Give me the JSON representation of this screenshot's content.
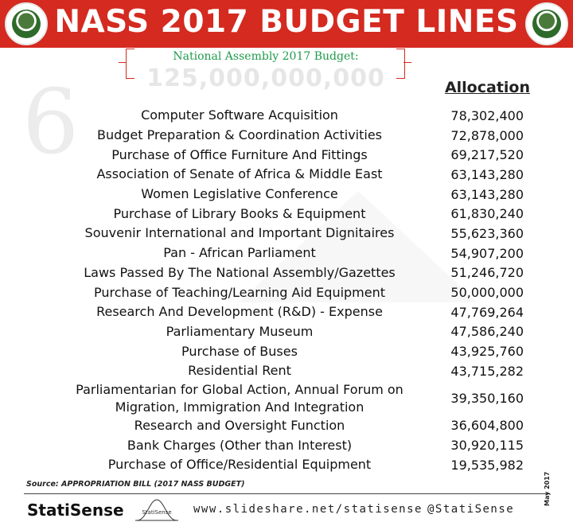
{
  "header": {
    "title": "NASS 2017 BUDGET LINES",
    "left_seal": "senate-seal-icon",
    "right_seal": "house-of-representatives-seal-icon",
    "accent_color": "#d42a20"
  },
  "budget": {
    "label": "National Assembly 2017 Budget:",
    "amount": "125,000,000,000"
  },
  "big_number": "6",
  "table": {
    "allocation_header": "Allocation",
    "rows": [
      {
        "item": "Computer Software Acquisition",
        "amount": "78,302,400"
      },
      {
        "item": "Budget Preparation & Coordination Activities",
        "amount": "72,878,000"
      },
      {
        "item": "Purchase of Office Furniture And Fittings",
        "amount": "69,217,520"
      },
      {
        "item": "Association of Senate of Africa & Middle East",
        "amount": "63,143,280"
      },
      {
        "item": "Women Legislative Conference",
        "amount": "63,143,280"
      },
      {
        "item": "Purchase of Library Books & Equipment",
        "amount": "61,830,240"
      },
      {
        "item": "Souvenir International and Important Dignitaires",
        "amount": "55,623,360"
      },
      {
        "item": "Pan - African Parliament",
        "amount": "54,907,200"
      },
      {
        "item": "Laws Passed By The National Assembly/Gazettes",
        "amount": "51,246,720"
      },
      {
        "item": "Purchase of Teaching/Learning Aid Equipment",
        "amount": "50,000,000"
      },
      {
        "item": "Research And Development (R&D) - Expense",
        "amount": "47,769,264"
      },
      {
        "item": "Parliamentary Museum",
        "amount": "47,586,240"
      },
      {
        "item": "Purchase of Buses",
        "amount": "43,925,760"
      },
      {
        "item": "Residential Rent",
        "amount": "43,715,282"
      },
      {
        "item": "Parliamentarian for Global Action, Annual Forum on\nMigration, Immigration And Integration",
        "amount": "39,350,160"
      },
      {
        "item": "Research and Oversight Function",
        "amount": "36,604,800"
      },
      {
        "item": "Bank Charges (Other than Interest)",
        "amount": "30,920,115"
      },
      {
        "item": "Purchase of Office/Residential Equipment",
        "amount": "19,535,982"
      }
    ]
  },
  "footer": {
    "source": "Source: APPROPRIATION BILL (2017 NASS BUDGET)",
    "brand": "StatiSense",
    "logo": "statisense-bell-curve-logo",
    "logo_text": "StatiSense",
    "website": "www.slideshare.net/statisense",
    "handle": "@StatiSense",
    "date": "May 2017"
  }
}
